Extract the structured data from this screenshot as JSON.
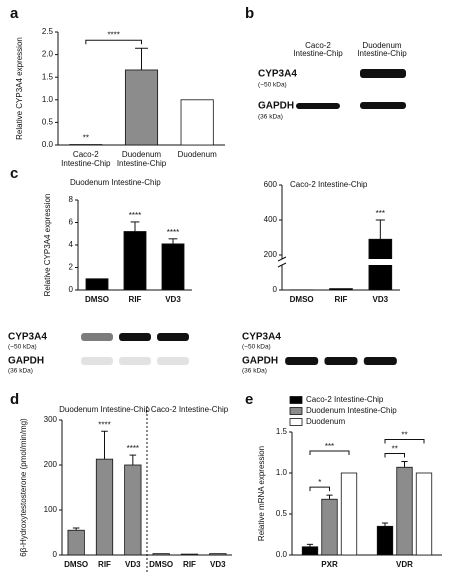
{
  "chart_data": [
    {
      "type": "bar",
      "panel": "a",
      "y_label": "Relative CYP3A4 expression",
      "categories": [
        [
          "Caco-2",
          "Intestine-Chip"
        ],
        [
          "Duodenum",
          "Intestine-Chip"
        ],
        [
          "Duodenum"
        ]
      ],
      "values": [
        0.01,
        1.66,
        1.0
      ],
      "errors": [
        null,
        0.48,
        null
      ],
      "colors": [
        "#111111",
        "#8c8c8c",
        "#ffffff"
      ],
      "annotations": [
        "**",
        null,
        null
      ],
      "brackets": [
        {
          "text": "****",
          "between": [
            0,
            1
          ]
        }
      ],
      "ylim": [
        0,
        2.5
      ],
      "yticks": [
        {
          "value": 0,
          "label": "0.0"
        },
        {
          "value": 0.5,
          "label": "0.5"
        },
        {
          "value": 1,
          "label": "1.0"
        },
        {
          "value": 1.5,
          "label": "1.5"
        },
        {
          "value": 2,
          "label": "2.0"
        },
        {
          "value": 2.5,
          "label": "2.5"
        }
      ]
    },
    {
      "type": "blot",
      "panel": "b",
      "columns": [
        [
          "Caco-2",
          "Intestine-Chip"
        ],
        [
          "Duodenum",
          "Intestine-Chip"
        ]
      ],
      "rows": [
        {
          "name": "CYP3A4",
          "size": "(~50 kDa)"
        },
        {
          "name": "GAPDH",
          "size": "(36 kDa)"
        }
      ]
    },
    {
      "type": "bar",
      "panel": "c",
      "title": "Duodenum Intestine-Chip",
      "y_label": "Relative CYP3A4 expression",
      "categories": [
        "DMSO",
        "RIF",
        "VD3"
      ],
      "values": [
        1,
        5.2,
        4.1
      ],
      "errors": [
        null,
        0.85,
        0.45
      ],
      "color": "#000000",
      "annotations": [
        null,
        "****",
        "****"
      ],
      "ylim": [
        0,
        8
      ],
      "yticks": [
        0,
        2,
        4,
        6,
        8
      ],
      "blot": [
        {
          "name": "CYP3A4",
          "size": "(~50 kDa)"
        },
        {
          "name": "GAPDH",
          "size": "(36 kDa)"
        }
      ]
    },
    {
      "type": "bar",
      "title": "Caco-2 Intestine-Chip",
      "categories": [
        "DMSO",
        "RIF",
        "VD3"
      ],
      "values": [
        1,
        8,
        290
      ],
      "errors": [
        null,
        null,
        110
      ],
      "color": "#000000",
      "annotations": [
        null,
        null,
        "***"
      ],
      "ylim": [
        0,
        600
      ],
      "yticks": [
        0,
        200,
        400,
        600
      ],
      "blot": [
        {
          "name": "CYP3A4",
          "size": "(~50 kDa)"
        },
        {
          "name": "GAPDH",
          "size": "(36 kDa)"
        }
      ]
    },
    {
      "type": "bar",
      "panel": "d",
      "y_label": "6β-Hydroxytestosterone (pmol/min/mg)",
      "groups": [
        "Duodenum Intestine-Chip",
        "Caco-2 Intestine-Chip"
      ],
      "categories": [
        "DMSO",
        "RIF",
        "VD3",
        "DMSO",
        "RIF",
        "VD3"
      ],
      "values": [
        55,
        213,
        200,
        3,
        2,
        3
      ],
      "errors": [
        5,
        62,
        22,
        null,
        null,
        null
      ],
      "color": "#8c8c8c",
      "annotations": [
        null,
        "****",
        "****",
        null,
        null,
        null
      ],
      "ylim": [
        0,
        300
      ],
      "yticks": [
        0,
        100,
        200,
        300
      ]
    },
    {
      "type": "bar",
      "panel": "e",
      "y_label": "Relative mRNA expression",
      "categories": [
        "PXR",
        "VDR"
      ],
      "series": [
        {
          "name": "Caco-2 Intestine-Chip",
          "color": "#000000",
          "values": [
            0.1,
            0.35
          ],
          "errors": [
            0.03,
            0.04
          ]
        },
        {
          "name": "Duodenum Intestine-Chip",
          "color": "#8c8c8c",
          "values": [
            0.68,
            1.07
          ],
          "errors": [
            0.05,
            0.07
          ]
        },
        {
          "name": "Duodenum",
          "color": "#ffffff",
          "values": [
            1.0,
            1.0
          ],
          "errors": [
            null,
            null
          ]
        }
      ],
      "brackets": [
        {
          "text": "*",
          "category": 0,
          "between": [
            0,
            1
          ]
        },
        {
          "text": "***",
          "category": 0,
          "between": [
            0,
            2
          ]
        },
        {
          "text": "**",
          "category": 1,
          "between": [
            0,
            1
          ]
        },
        {
          "text": "**",
          "category": 1,
          "between": [
            0,
            2
          ]
        }
      ],
      "ylim": [
        0,
        1.5
      ],
      "yticks": [
        {
          "value": 0,
          "label": "0.0"
        },
        {
          "value": 0.5,
          "label": "0.5"
        },
        {
          "value": 1,
          "label": "1.0"
        },
        {
          "value": 1.5,
          "label": "1.5"
        }
      ]
    }
  ]
}
